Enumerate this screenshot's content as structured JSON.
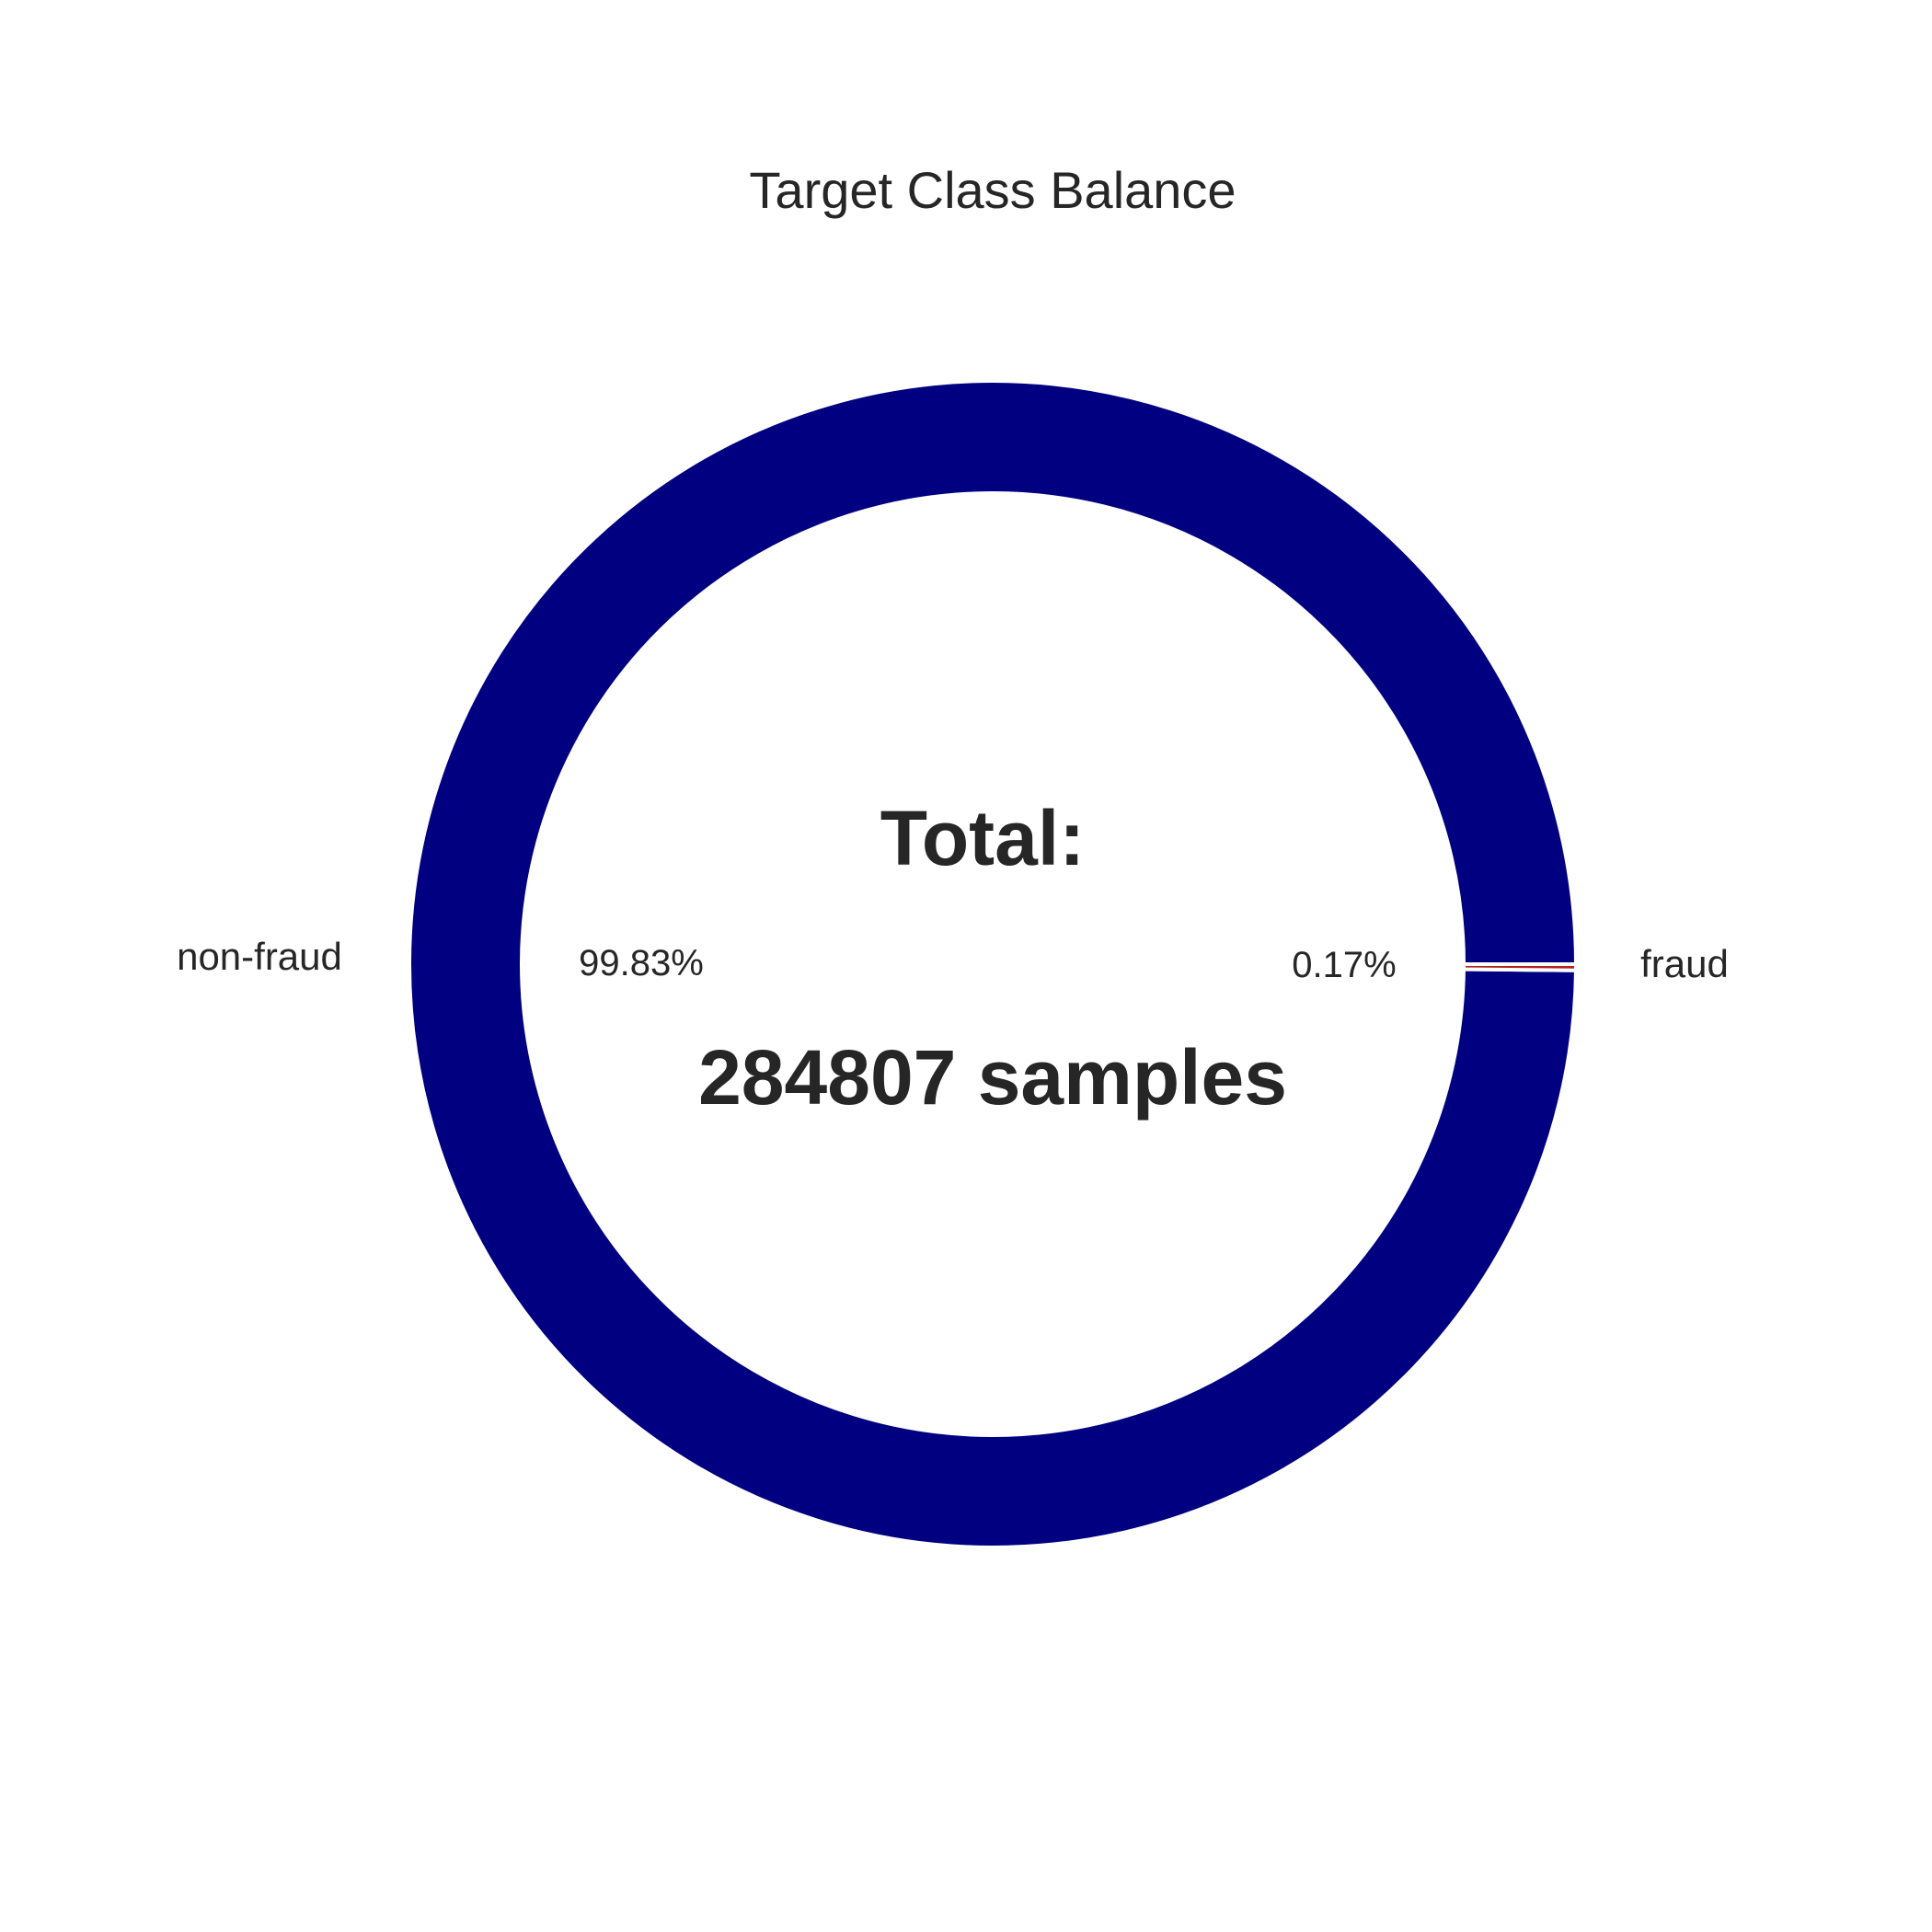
{
  "chart_data": {
    "type": "pie",
    "title": "Target Class Balance",
    "donut": true,
    "categories": [
      "non-fraud",
      "fraud"
    ],
    "values": [
      99.83,
      0.17
    ],
    "value_labels": [
      "99.83%",
      "0.17%"
    ],
    "colors": [
      "#000080",
      "#b22222"
    ],
    "center_lines": [
      "Total:",
      "284807 samples"
    ],
    "legend": "none"
  }
}
